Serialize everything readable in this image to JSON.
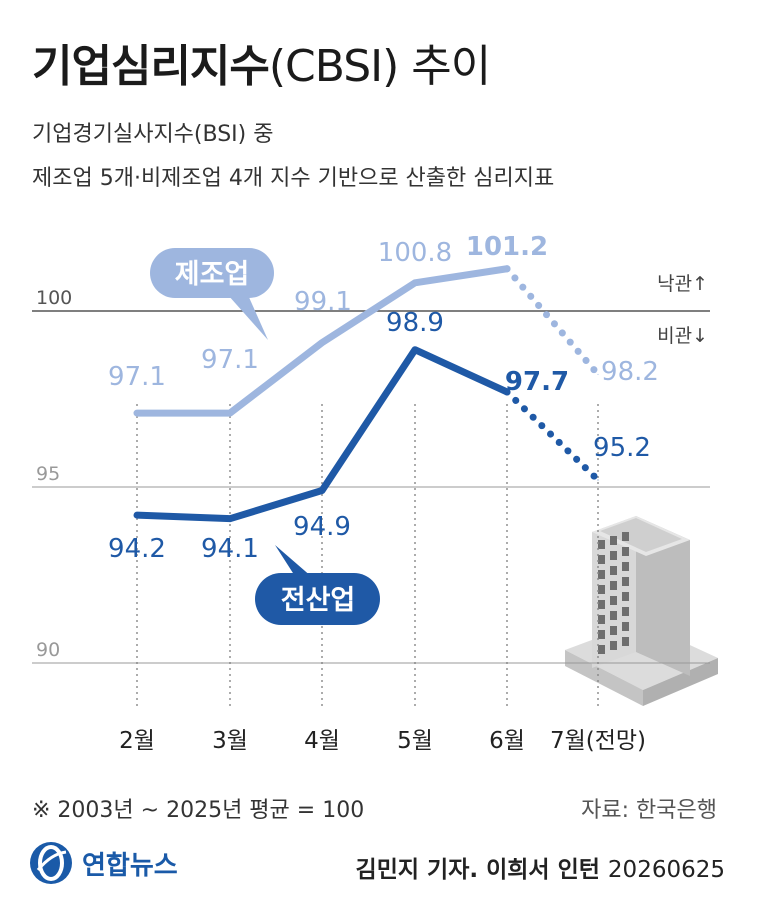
{
  "header": {
    "title_bold": "기업심리지수",
    "title_light": "(CBSI) 추이",
    "subtitle_line1": "기업경기실사지수(BSI) 중",
    "subtitle_line2": "제조업 5개·비제조업 4개 지수 기반으로 산출한 심리지표"
  },
  "chart_data": {
    "type": "line",
    "categories": [
      "2월",
      "3월",
      "4월",
      "5월",
      "6월",
      "7월(전망)"
    ],
    "ylim": [
      90,
      102
    ],
    "y_ticks": [
      "100",
      "95",
      "90"
    ],
    "reference_line": {
      "value": 100,
      "label_above": "낙관↑",
      "label_below": "비관↓"
    },
    "series": [
      {
        "name": "제조업",
        "color": "#9eb6df",
        "values": [
          97.1,
          97.1,
          99.1,
          100.8,
          101.2,
          98.2
        ],
        "labels": [
          "97.1",
          "97.1",
          "99.1",
          "100.8",
          "101.2",
          "98.2"
        ],
        "forecast_from_index": 4
      },
      {
        "name": "전산업",
        "color": "#1f59a6",
        "values": [
          94.2,
          94.1,
          94.9,
          98.9,
          97.7,
          95.2
        ],
        "labels": [
          "94.2",
          "94.1",
          "94.9",
          "98.9",
          "97.7",
          "95.2"
        ],
        "forecast_from_index": 4
      }
    ],
    "grid": "dotted vertical lines at each month"
  },
  "footer": {
    "note": "※ 2003년 ~ 2025년 평균 = 100",
    "source": "자료: 한국은행",
    "logo_text": "연합뉴스",
    "credit": "김민지 기자. 이희서 인턴",
    "date": "20260625"
  }
}
